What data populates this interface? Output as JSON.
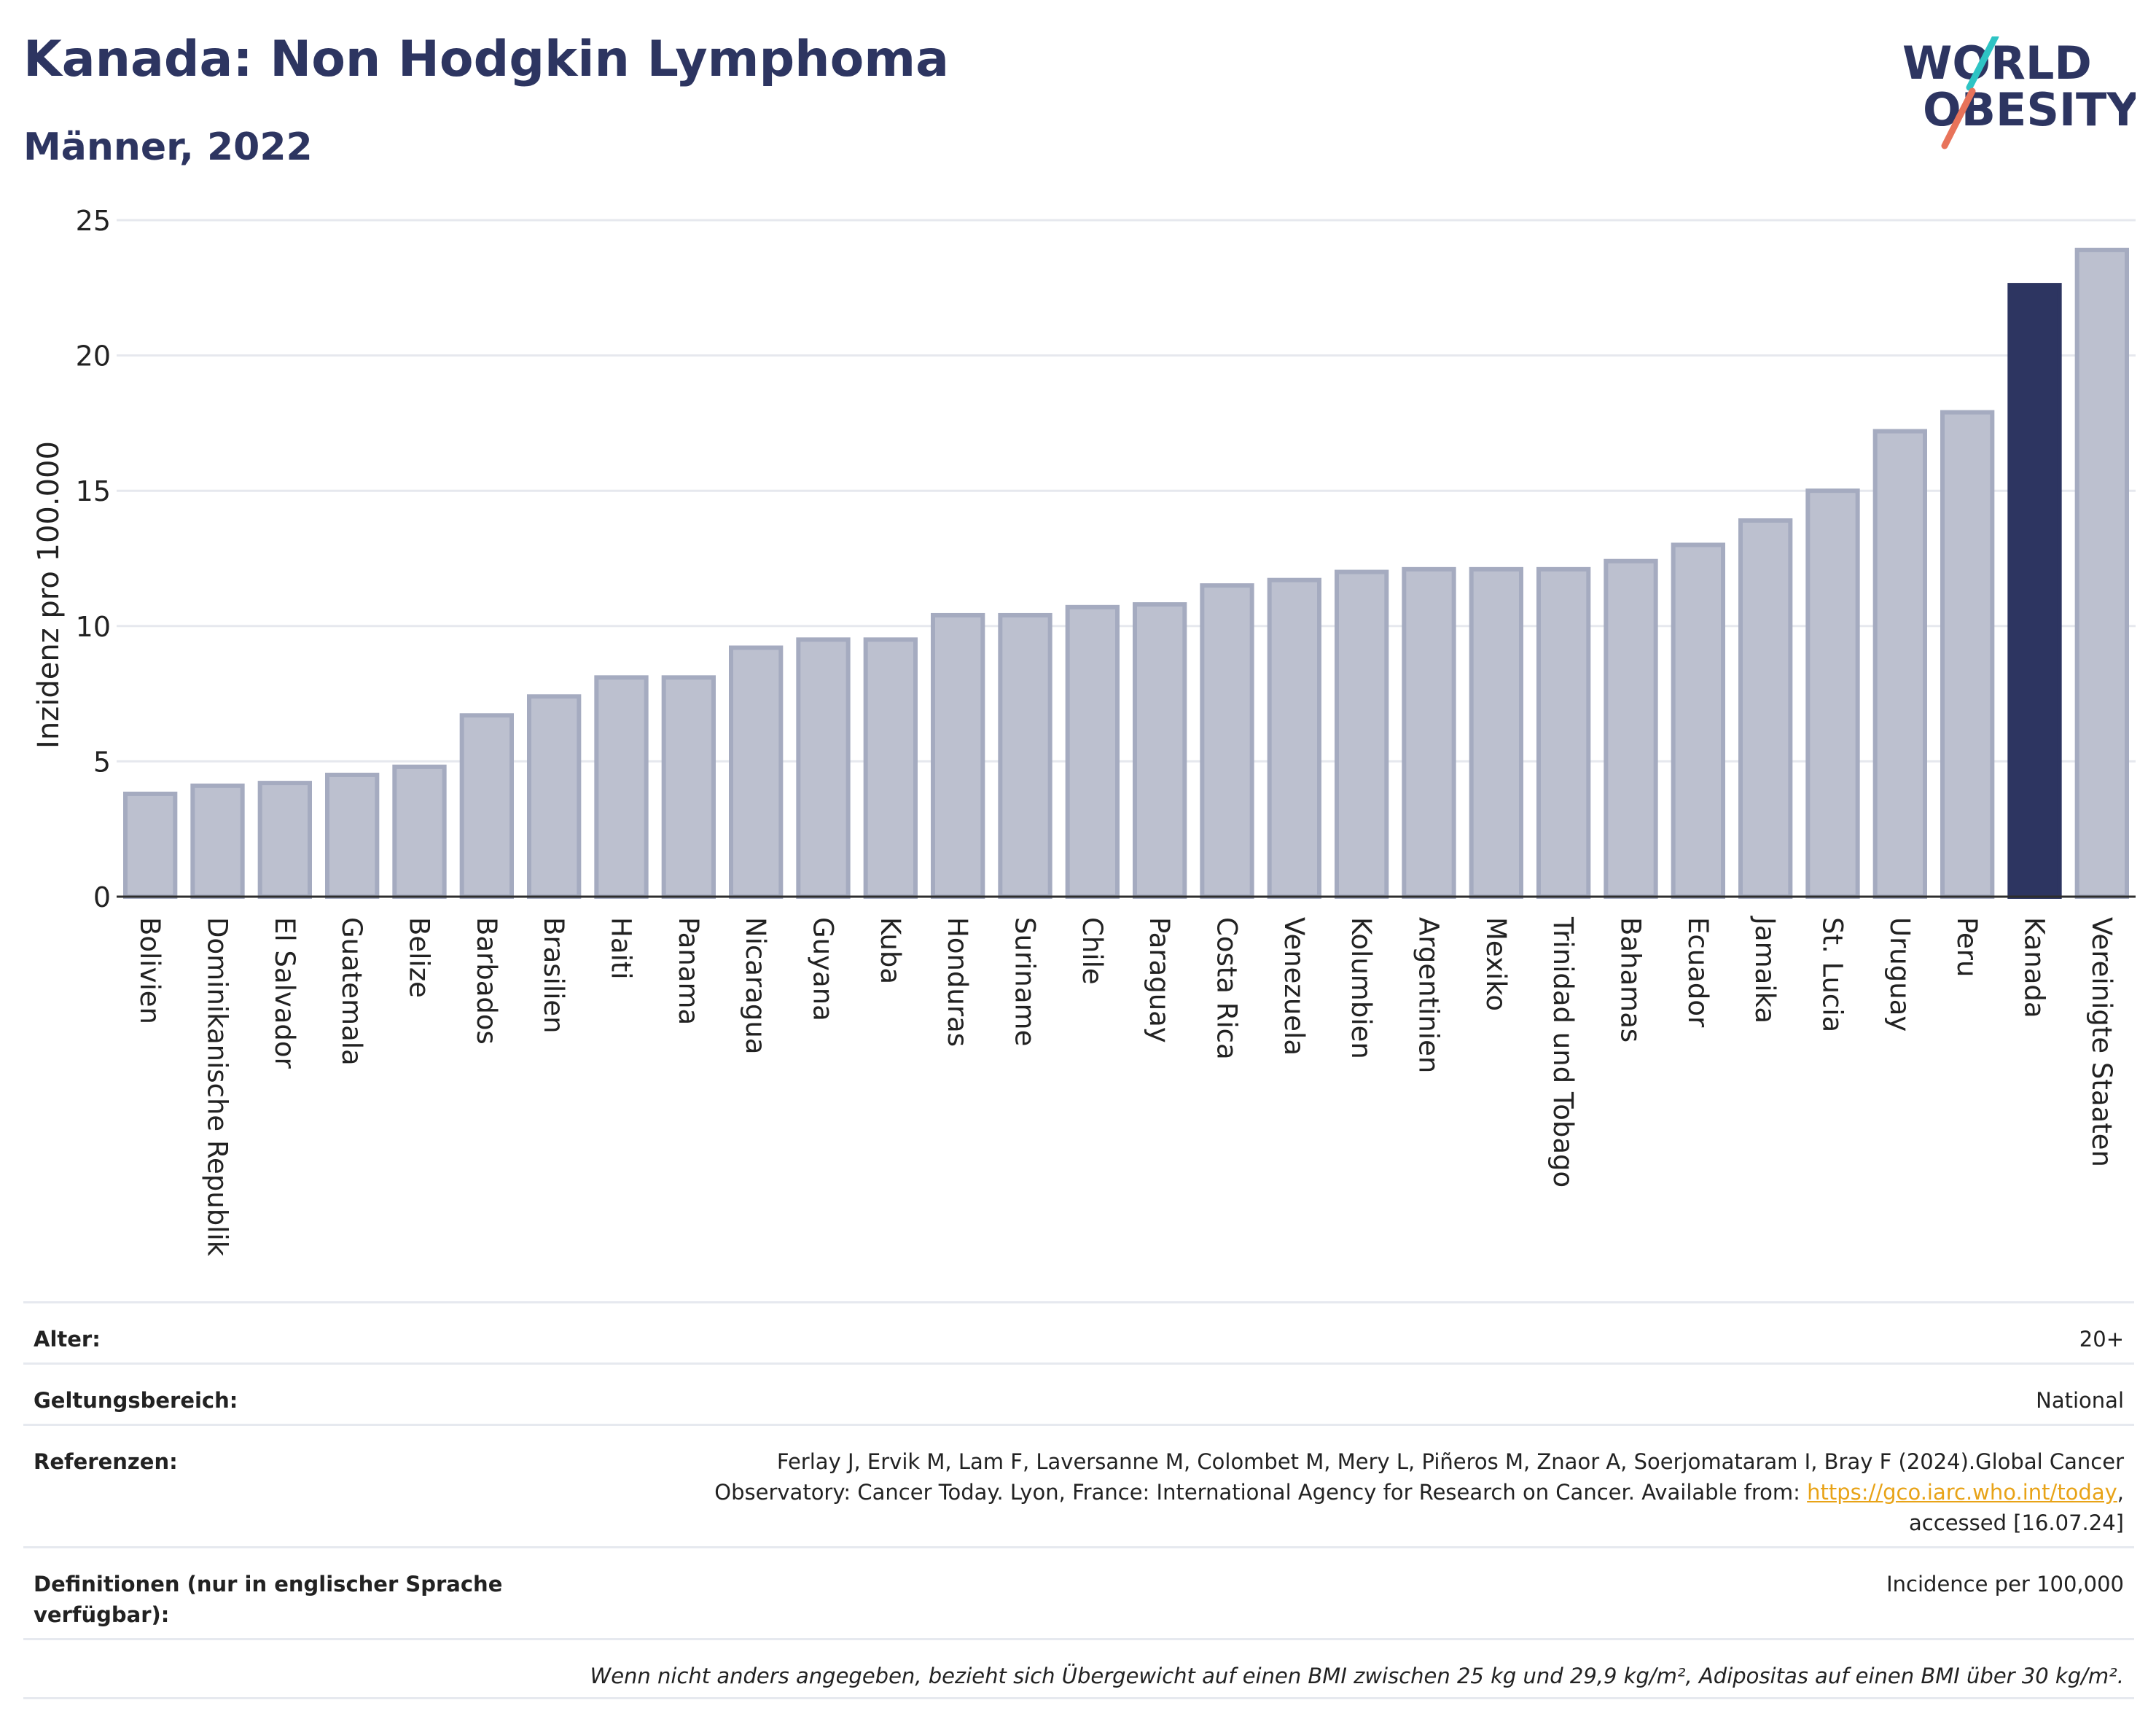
{
  "header": {
    "title": "Kanada: Non Hodgkin Lymphoma",
    "subtitle": "Männer, 2022",
    "logo_line1": "WORLD",
    "logo_line2": "OBESITY"
  },
  "colors": {
    "bar_default": "#bcc0cf",
    "bar_default_border": "#a5abc0",
    "bar_highlight": "#2d3561",
    "title": "#2d3561",
    "link": "#e8a317",
    "logo_teal": "#2ec4c4",
    "logo_coral": "#e8735a"
  },
  "chart_data": {
    "type": "bar",
    "ylabel": "Inzidenz pro 100.000",
    "ylim": [
      0,
      25
    ],
    "yticks": [
      0,
      5,
      10,
      15,
      20,
      25
    ],
    "grid": true,
    "highlight": "Kanada",
    "categories": [
      "Bolivien",
      "Dominikanische Republik",
      "El Salvador",
      "Guatemala",
      "Belize",
      "Barbados",
      "Brasilien",
      "Haiti",
      "Panama",
      "Nicaragua",
      "Guyana",
      "Kuba",
      "Honduras",
      "Suriname",
      "Chile",
      "Paraguay",
      "Costa Rica",
      "Venezuela",
      "Kolumbien",
      "Argentinien",
      "Mexiko",
      "Trinidad und Tobago",
      "Bahamas",
      "Ecuador",
      "Jamaika",
      "St. Lucia",
      "Uruguay",
      "Peru",
      "Kanada",
      "Vereinigte Staaten"
    ],
    "values": [
      3.8,
      4.1,
      4.2,
      4.5,
      4.8,
      6.7,
      7.4,
      8.1,
      8.1,
      9.2,
      9.5,
      9.5,
      10.4,
      10.4,
      10.7,
      10.8,
      11.5,
      11.7,
      12.0,
      12.1,
      12.1,
      12.1,
      12.4,
      13.0,
      13.9,
      15.0,
      17.2,
      17.9,
      22.6,
      23.9
    ]
  },
  "info": {
    "age_label": "Alter:",
    "age_value": "20+",
    "scope_label": "Geltungsbereich:",
    "scope_value": "National",
    "refs_label": "Referenzen:",
    "refs_text_1": "Ferlay J, Ervik M, Lam F, Laversanne M, Colombet M, Mery L, Piñeros M, Znaor A, Soerjomataram I, Bray F (2024).Global Cancer",
    "refs_text_2": "Observatory: Cancer Today. Lyon, France: International Agency for Research on Cancer. Available from: ",
    "refs_link": "https://gco.iarc.who.int/today",
    "refs_text_3": ",",
    "refs_text_4": "accessed [16.07.24]",
    "defs_label": "Definitionen (nur in englischer Sprache verfügbar):",
    "defs_value": "Incidence per 100,000",
    "note": "Wenn nicht anders angegeben, bezieht sich Übergewicht auf einen BMI zwischen 25 kg und 29,9 kg/m², Adipositas auf einen BMI über 30 kg/m²."
  }
}
